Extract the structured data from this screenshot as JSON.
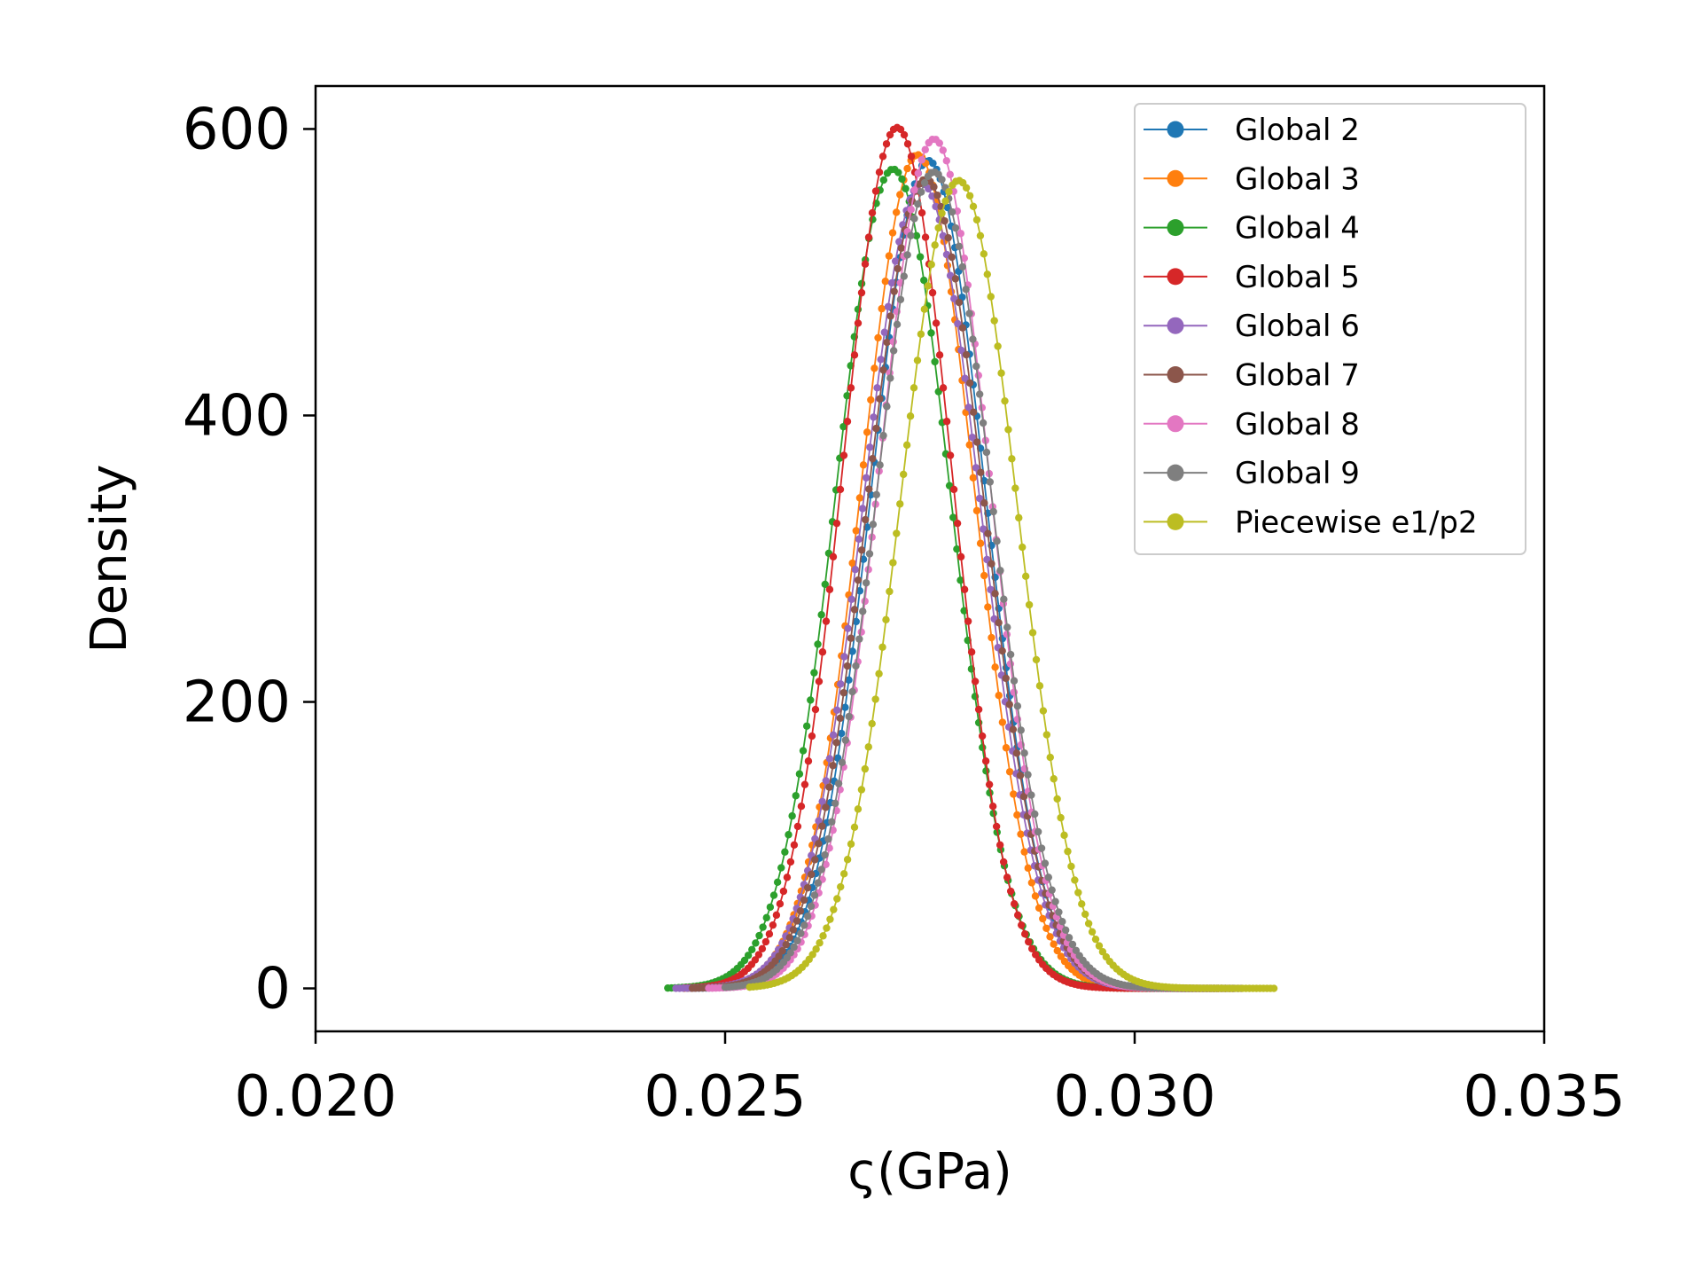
{
  "chart_data": {
    "type": "line",
    "title": "",
    "xlabel": "ς(GPa)",
    "ylabel": "Density",
    "xlim": [
      0.02,
      0.035
    ],
    "ylim": [
      -30,
      630
    ],
    "xticks": [
      0.02,
      0.025,
      0.03,
      0.035
    ],
    "xtick_labels": [
      "0.020",
      "0.025",
      "0.030",
      "0.035"
    ],
    "yticks": [
      0,
      200,
      400,
      600
    ],
    "ytick_labels": [
      "0",
      "200",
      "400",
      "600"
    ],
    "grid": false,
    "legend_position": "top-right",
    "series": [
      {
        "name": "Global 2",
        "color": "#1f77b4",
        "mean": 0.02748,
        "peak": 578,
        "x_range": [
          0.0245,
          0.0312
        ]
      },
      {
        "name": "Global 3",
        "color": "#ff7f0e",
        "mean": 0.02735,
        "peak": 582,
        "x_range": [
          0.0245,
          0.0312
        ]
      },
      {
        "name": "Global 4",
        "color": "#2ca02c",
        "mean": 0.02705,
        "peak": 572,
        "x_range": [
          0.0243,
          0.031
        ]
      },
      {
        "name": "Global 5",
        "color": "#d62728",
        "mean": 0.0271,
        "peak": 601,
        "x_range": [
          0.0245,
          0.031
        ]
      },
      {
        "name": "Global 6",
        "color": "#9467bd",
        "mean": 0.0274,
        "peak": 562,
        "x_range": [
          0.0244,
          0.0311
        ]
      },
      {
        "name": "Global 7",
        "color": "#8c564b",
        "mean": 0.02745,
        "peak": 565,
        "x_range": [
          0.0246,
          0.0312
        ]
      },
      {
        "name": "Global 8",
        "color": "#e377c2",
        "mean": 0.02755,
        "peak": 593,
        "x_range": [
          0.0248,
          0.0313
        ]
      },
      {
        "name": "Global 9",
        "color": "#7f7f7f",
        "mean": 0.02755,
        "peak": 570,
        "x_range": [
          0.025,
          0.0313
        ]
      },
      {
        "name": "Piecewise e1/p2",
        "color": "#bcbd22",
        "mean": 0.02785,
        "peak": 564,
        "x_range": [
          0.0253,
          0.0317
        ]
      }
    ]
  }
}
